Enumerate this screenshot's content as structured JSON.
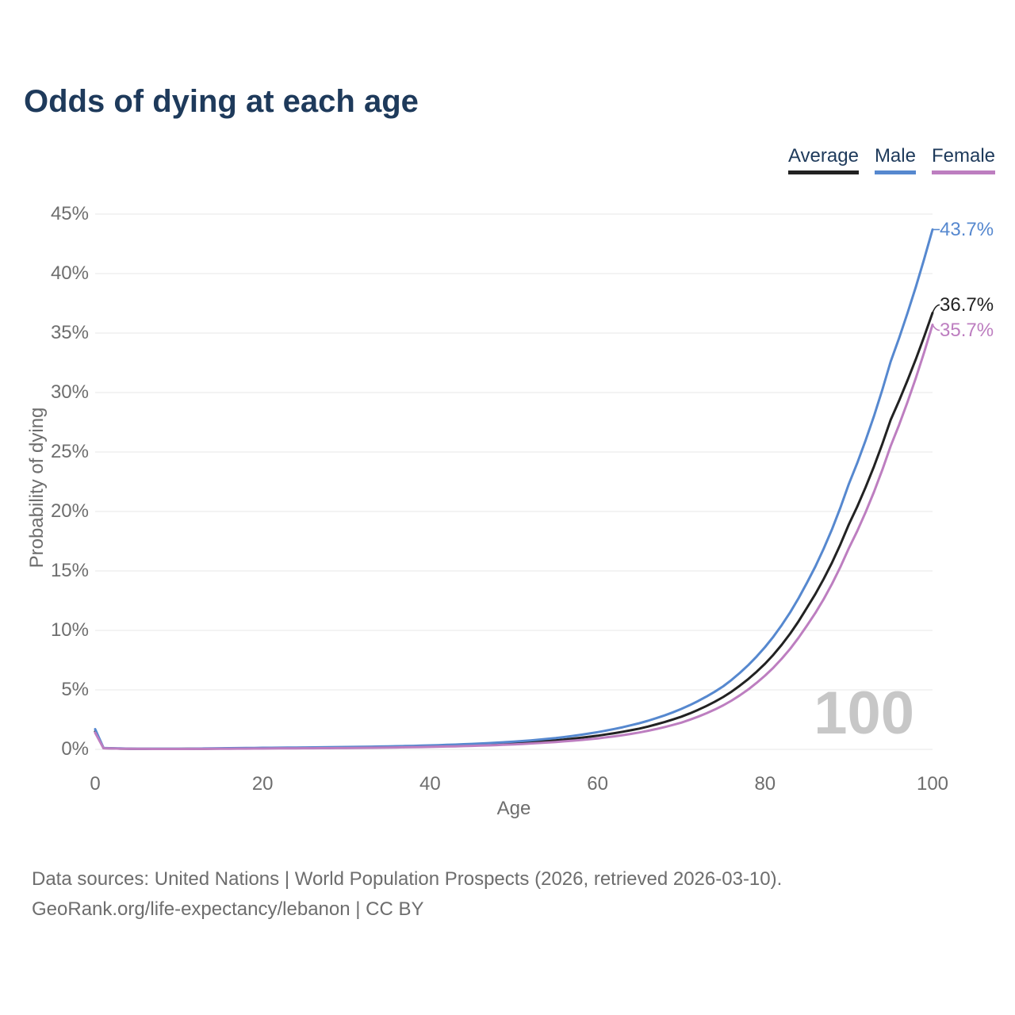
{
  "page": {
    "title": "Odds of dying at each age"
  },
  "legend": {
    "items": [
      {
        "label": "Average"
      },
      {
        "label": "Male"
      },
      {
        "label": "Female"
      }
    ]
  },
  "colors": {
    "average": "#222222",
    "male": "#5688cf",
    "female": "#bd7ec0",
    "heading": "#1e3a5b",
    "tick": "#6e6e6e",
    "grid": "#e7e7e7",
    "watermark": "#c7c7c7",
    "footer": "#6d6d6d"
  },
  "watermark_label": "100",
  "footer": {
    "line1": "Data sources: United Nations | World Population Prospects (2026, retrieved 2026-03-10).",
    "line2": "GeoRank.org/life-expectancy/lebanon | CC BY"
  },
  "chart_data": {
    "type": "line",
    "title": "Odds of dying at each age",
    "xlabel": "Age",
    "ylabel": "Probability of dying",
    "xlim": [
      0,
      100
    ],
    "ylim": [
      0,
      45
    ],
    "x_ticks": [
      0,
      20,
      40,
      60,
      80,
      100
    ],
    "y_ticks": [
      0,
      5,
      10,
      15,
      20,
      25,
      30,
      35,
      40,
      45
    ],
    "y_tick_suffix": "%",
    "grid": "horizontal",
    "legend_position": "top-right",
    "units": "percent",
    "annotation": "100",
    "ages": [
      0,
      1,
      5,
      10,
      15,
      20,
      25,
      30,
      35,
      40,
      45,
      50,
      55,
      60,
      65,
      70,
      75,
      80,
      85,
      90,
      95,
      100
    ],
    "series": [
      {
        "name": "Average",
        "color_key": "average",
        "end_label": "36.7%",
        "values": [
          1.5,
          0.1,
          0.04,
          0.04,
          0.07,
          0.1,
          0.12,
          0.15,
          0.2,
          0.26,
          0.36,
          0.52,
          0.76,
          1.15,
          1.75,
          2.75,
          4.4,
          7.2,
          11.9,
          18.9,
          27.7,
          36.7
        ]
      },
      {
        "name": "Male",
        "color_key": "male",
        "end_label": "43.7%",
        "values": [
          1.7,
          0.12,
          0.05,
          0.05,
          0.09,
          0.13,
          0.16,
          0.2,
          0.25,
          0.33,
          0.46,
          0.65,
          0.95,
          1.45,
          2.2,
          3.4,
          5.3,
          8.6,
          14.0,
          22.3,
          32.6,
          43.7
        ]
      },
      {
        "name": "Female",
        "color_key": "female",
        "end_label": "35.7%",
        "values": [
          1.4,
          0.09,
          0.04,
          0.03,
          0.05,
          0.07,
          0.09,
          0.11,
          0.15,
          0.21,
          0.29,
          0.42,
          0.62,
          0.92,
          1.42,
          2.25,
          3.7,
          6.2,
          10.4,
          16.9,
          25.5,
          35.7
        ]
      }
    ]
  }
}
